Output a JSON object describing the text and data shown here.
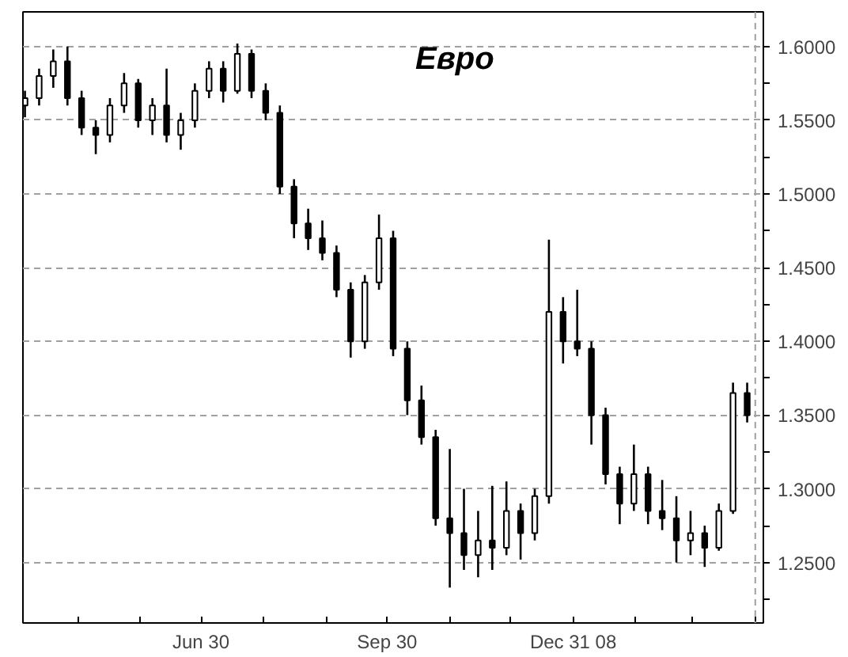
{
  "chart_data": {
    "type": "candlestick",
    "title": "Евро",
    "color": "#000000",
    "x": [
      "2008-04-04",
      "2008-04-11",
      "2008-04-18",
      "2008-04-25",
      "2008-05-02",
      "2008-05-09",
      "2008-05-16",
      "2008-05-23",
      "2008-05-30",
      "2008-06-06",
      "2008-06-13",
      "2008-06-20",
      "2008-06-27",
      "2008-07-04",
      "2008-07-11",
      "2008-07-18",
      "2008-07-25",
      "2008-08-01",
      "2008-08-08",
      "2008-08-15",
      "2008-08-22",
      "2008-08-29",
      "2008-09-05",
      "2008-09-12",
      "2008-09-19",
      "2008-09-26",
      "2008-10-03",
      "2008-10-10",
      "2008-10-17",
      "2008-10-24",
      "2008-10-31",
      "2008-11-07",
      "2008-11-14",
      "2008-11-21",
      "2008-11-28",
      "2008-12-05",
      "2008-12-12",
      "2008-12-19",
      "2008-12-26",
      "2009-01-02",
      "2009-01-09",
      "2009-01-16",
      "2009-01-23",
      "2009-01-30",
      "2009-02-06",
      "2009-02-13",
      "2009-02-20",
      "2009-02-27",
      "2009-03-06",
      "2009-03-13",
      "2009-03-20",
      "2009-03-27"
    ],
    "ohlc": [
      [
        1.56,
        1.57,
        1.552,
        1.565
      ],
      [
        1.565,
        1.585,
        1.56,
        1.58
      ],
      [
        1.58,
        1.598,
        1.572,
        1.59
      ],
      [
        1.59,
        1.6,
        1.56,
        1.565
      ],
      [
        1.565,
        1.57,
        1.54,
        1.545
      ],
      [
        1.545,
        1.55,
        1.527,
        1.54
      ],
      [
        1.54,
        1.565,
        1.535,
        1.56
      ],
      [
        1.56,
        1.582,
        1.555,
        1.575
      ],
      [
        1.575,
        1.578,
        1.545,
        1.55
      ],
      [
        1.55,
        1.565,
        1.54,
        1.56
      ],
      [
        1.56,
        1.585,
        1.535,
        1.54
      ],
      [
        1.54,
        1.555,
        1.53,
        1.55
      ],
      [
        1.55,
        1.575,
        1.545,
        1.57
      ],
      [
        1.57,
        1.59,
        1.565,
        1.585
      ],
      [
        1.585,
        1.59,
        1.562,
        1.57
      ],
      [
        1.57,
        1.602,
        1.568,
        1.595
      ],
      [
        1.595,
        1.598,
        1.565,
        1.57
      ],
      [
        1.57,
        1.575,
        1.55,
        1.555
      ],
      [
        1.555,
        1.56,
        1.5,
        1.505
      ],
      [
        1.505,
        1.51,
        1.47,
        1.48
      ],
      [
        1.48,
        1.49,
        1.462,
        1.47
      ],
      [
        1.47,
        1.482,
        1.455,
        1.46
      ],
      [
        1.46,
        1.465,
        1.43,
        1.435
      ],
      [
        1.435,
        1.44,
        1.389,
        1.4
      ],
      [
        1.4,
        1.445,
        1.395,
        1.44
      ],
      [
        1.44,
        1.486,
        1.435,
        1.47
      ],
      [
        1.47,
        1.475,
        1.39,
        1.395
      ],
      [
        1.395,
        1.4,
        1.35,
        1.36
      ],
      [
        1.36,
        1.37,
        1.33,
        1.335
      ],
      [
        1.335,
        1.34,
        1.275,
        1.28
      ],
      [
        1.28,
        1.327,
        1.233,
        1.27
      ],
      [
        1.27,
        1.3,
        1.245,
        1.255
      ],
      [
        1.255,
        1.285,
        1.24,
        1.265
      ],
      [
        1.265,
        1.302,
        1.245,
        1.26
      ],
      [
        1.26,
        1.305,
        1.255,
        1.285
      ],
      [
        1.285,
        1.29,
        1.252,
        1.27
      ],
      [
        1.27,
        1.3,
        1.265,
        1.295
      ],
      [
        1.295,
        1.469,
        1.29,
        1.42
      ],
      [
        1.42,
        1.43,
        1.385,
        1.4
      ],
      [
        1.4,
        1.435,
        1.39,
        1.395
      ],
      [
        1.395,
        1.4,
        1.33,
        1.35
      ],
      [
        1.35,
        1.355,
        1.303,
        1.31
      ],
      [
        1.31,
        1.315,
        1.276,
        1.29
      ],
      [
        1.29,
        1.33,
        1.285,
        1.31
      ],
      [
        1.31,
        1.315,
        1.276,
        1.285
      ],
      [
        1.285,
        1.306,
        1.272,
        1.28
      ],
      [
        1.28,
        1.295,
        1.25,
        1.265
      ],
      [
        1.265,
        1.285,
        1.255,
        1.27
      ],
      [
        1.27,
        1.275,
        1.247,
        1.26
      ],
      [
        1.26,
        1.29,
        1.258,
        1.285
      ],
      [
        1.285,
        1.372,
        1.283,
        1.365
      ],
      [
        1.365,
        1.372,
        1.345,
        1.35
      ]
    ],
    "xlim": [
      "2008-04-03",
      "2009-04-04"
    ],
    "xticks": [
      {
        "value": "2008-04-30",
        "label": null
      },
      {
        "value": "2008-05-31",
        "label": null
      },
      {
        "value": "2008-06-30",
        "label": "Jun 30"
      },
      {
        "value": "2008-07-31",
        "label": null
      },
      {
        "value": "2008-08-31",
        "label": null
      },
      {
        "value": "2008-09-30",
        "label": "Sep 30"
      },
      {
        "value": "2008-10-31",
        "label": null
      },
      {
        "value": "2008-11-30",
        "label": null
      },
      {
        "value": "2008-12-31",
        "label": "Dec 31 08"
      },
      {
        "value": "2009-01-31",
        "label": null
      },
      {
        "value": "2009-02-28",
        "label": null
      },
      {
        "value": "2009-03-31",
        "label": null
      }
    ],
    "ylim": [
      1.209,
      1.6235
    ],
    "yticks": [
      {
        "value": 1.225,
        "label": null
      },
      {
        "value": 1.25,
        "label": "1.2500"
      },
      {
        "value": 1.275,
        "label": null
      },
      {
        "value": 1.3,
        "label": "1.3000"
      },
      {
        "value": 1.325,
        "label": null
      },
      {
        "value": 1.35,
        "label": "1.3500"
      },
      {
        "value": 1.375,
        "label": null
      },
      {
        "value": 1.4,
        "label": "1.4000"
      },
      {
        "value": 1.425,
        "label": null
      },
      {
        "value": 1.45,
        "label": "1.4500"
      },
      {
        "value": 1.475,
        "label": null
      },
      {
        "value": 1.5,
        "label": "1.5000"
      },
      {
        "value": 1.525,
        "label": null
      },
      {
        "value": 1.55,
        "label": "1.5500"
      },
      {
        "value": 1.575,
        "label": null
      },
      {
        "value": 1.6,
        "label": "1.6000"
      }
    ],
    "ref_lines": [
      {
        "axis": "x",
        "value": "2009-03-31",
        "label": null,
        "color": "#a0a0a0",
        "line_style": "dashed"
      }
    ],
    "grid": true
  }
}
